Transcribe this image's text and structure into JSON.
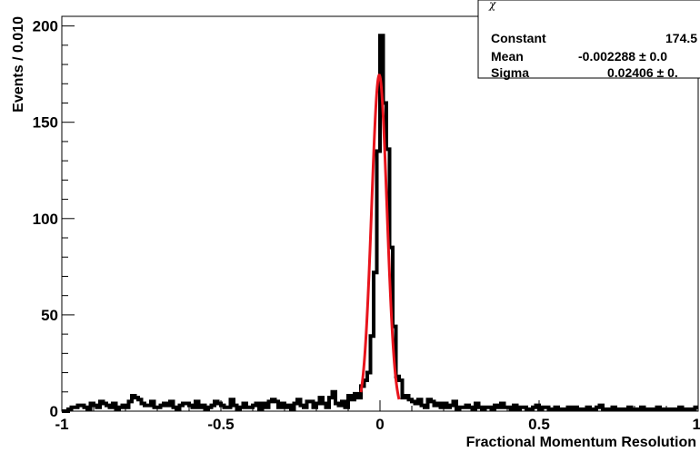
{
  "chart_data": {
    "type": "histogram",
    "xlabel": "Fractional Momentum Resolution",
    "ylabel": "Events / 0.010",
    "xlim": [
      -1,
      1
    ],
    "ylim": [
      0,
      205
    ],
    "x_ticks": [
      {
        "value": -1,
        "label": "-1"
      },
      {
        "value": -0.5,
        "label": "-0.5"
      },
      {
        "value": 0,
        "label": "0"
      },
      {
        "value": 0.5,
        "label": "0.5"
      },
      {
        "value": 1,
        "label": "1"
      }
    ],
    "y_ticks": [
      {
        "value": 0,
        "label": "0"
      },
      {
        "value": 50,
        "label": "50"
      },
      {
        "value": 100,
        "label": "100"
      },
      {
        "value": 150,
        "label": "150"
      },
      {
        "value": 200,
        "label": "200"
      }
    ],
    "bin_width": 0.01,
    "bin_edges_start": -1.0,
    "counts": [
      0,
      0,
      1,
      2,
      2,
      3,
      3,
      2,
      1,
      4,
      3,
      2,
      5,
      4,
      3,
      2,
      4,
      1,
      2,
      3,
      2,
      5,
      8,
      7,
      6,
      4,
      3,
      3,
      5,
      2,
      2,
      3,
      4,
      3,
      5,
      2,
      1,
      3,
      4,
      4,
      3,
      2,
      5,
      2,
      3,
      1,
      2,
      3,
      5,
      4,
      3,
      2,
      2,
      6,
      3,
      1,
      2,
      4,
      2,
      2,
      3,
      4,
      1,
      4,
      2,
      5,
      6,
      5,
      2,
      4,
      2,
      3,
      1,
      4,
      6,
      3,
      2,
      5,
      5,
      2,
      4,
      7,
      4,
      2,
      7,
      10,
      4,
      3,
      5,
      2,
      8,
      6,
      9,
      7,
      13,
      16,
      20,
      39,
      72,
      135,
      195,
      160,
      136,
      85,
      44,
      18,
      16,
      7,
      8,
      6,
      5,
      4,
      6,
      3,
      2,
      6,
      5,
      3,
      4,
      2,
      4,
      2,
      3,
      5,
      1,
      2,
      2,
      3,
      2,
      1,
      4,
      2,
      1,
      2,
      2,
      1,
      3,
      2,
      4,
      2,
      2,
      1,
      3,
      1,
      2,
      2,
      1,
      1,
      2,
      3,
      1,
      2,
      2,
      1,
      1,
      2,
      1,
      1,
      1,
      2,
      1,
      2,
      1,
      1,
      1,
      2,
      1,
      1,
      2,
      3,
      1,
      1,
      1,
      2,
      1,
      1,
      1,
      1,
      2,
      1,
      1,
      1,
      2,
      1,
      1,
      1,
      1,
      2,
      1,
      1,
      1,
      1,
      1,
      1,
      2,
      1,
      1,
      1,
      1,
      2
    ],
    "fit": {
      "type": "gaussian",
      "constant": 174.5,
      "mean": -0.002288,
      "sigma": 0.02406,
      "range": [
        -0.06,
        0.06
      ],
      "color": "#e8141c"
    },
    "stats_box": {
      "rows": [
        {
          "name": "Constant",
          "value": "174.5"
        },
        {
          "name": "Mean",
          "value": "-0.002288 ± 0.0"
        },
        {
          "name": "Sigma",
          "value": "0.02406 ± 0."
        }
      ]
    }
  }
}
